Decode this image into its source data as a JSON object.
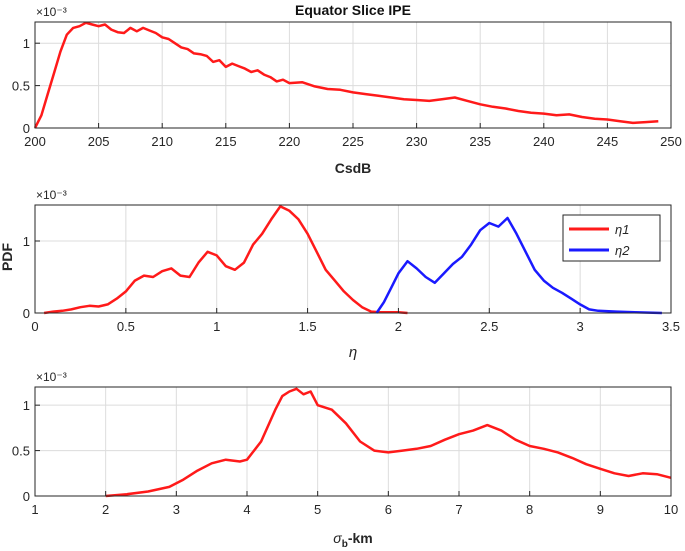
{
  "figure": {
    "title": "Equator Slice IPE",
    "shared_ylabel": "PDF"
  },
  "colors": {
    "red": "#ff1a1a",
    "blue": "#1a1aff",
    "grid": "#dcdcdc",
    "axis": "#262626"
  },
  "chart_data": [
    {
      "type": "line",
      "title": "Equator Slice IPE",
      "xlabel": "CsdB",
      "ylabel": "",
      "y_exponent": "×10⁻³",
      "xlim": [
        200,
        250
      ],
      "ylim": [
        0,
        1.25
      ],
      "x_ticks": [
        200,
        205,
        210,
        215,
        220,
        225,
        230,
        235,
        240,
        245,
        250
      ],
      "y_ticks": [
        0,
        0.5,
        1
      ],
      "y_tick_labels": [
        "0",
        "0.5",
        "1"
      ],
      "grid": true,
      "series": [
        {
          "name": "",
          "color": "#ff1a1a",
          "points": [
            [
              200,
              0.0
            ],
            [
              200.5,
              0.15
            ],
            [
              201,
              0.4
            ],
            [
              201.5,
              0.65
            ],
            [
              202,
              0.9
            ],
            [
              202.5,
              1.1
            ],
            [
              203,
              1.18
            ],
            [
              203.5,
              1.2
            ],
            [
              204,
              1.24
            ],
            [
              204.5,
              1.22
            ],
            [
              205,
              1.2
            ],
            [
              205.5,
              1.22
            ],
            [
              206,
              1.16
            ],
            [
              206.5,
              1.13
            ],
            [
              207,
              1.12
            ],
            [
              207.5,
              1.18
            ],
            [
              208,
              1.14
            ],
            [
              208.5,
              1.18
            ],
            [
              209,
              1.15
            ],
            [
              209.5,
              1.12
            ],
            [
              210,
              1.07
            ],
            [
              210.5,
              1.05
            ],
            [
              211,
              1.0
            ],
            [
              211.5,
              0.95
            ],
            [
              212,
              0.93
            ],
            [
              212.5,
              0.88
            ],
            [
              213,
              0.87
            ],
            [
              213.5,
              0.85
            ],
            [
              214,
              0.78
            ],
            [
              214.5,
              0.8
            ],
            [
              215,
              0.72
            ],
            [
              215.5,
              0.76
            ],
            [
              216,
              0.73
            ],
            [
              216.5,
              0.7
            ],
            [
              217,
              0.66
            ],
            [
              217.5,
              0.68
            ],
            [
              218,
              0.63
            ],
            [
              218.5,
              0.6
            ],
            [
              219,
              0.55
            ],
            [
              219.5,
              0.57
            ],
            [
              220,
              0.53
            ],
            [
              221,
              0.54
            ],
            [
              222,
              0.49
            ],
            [
              223,
              0.46
            ],
            [
              224,
              0.45
            ],
            [
              225,
              0.42
            ],
            [
              226,
              0.4
            ],
            [
              227,
              0.38
            ],
            [
              228,
              0.36
            ],
            [
              229,
              0.34
            ],
            [
              230,
              0.33
            ],
            [
              231,
              0.32
            ],
            [
              232,
              0.34
            ],
            [
              233,
              0.36
            ],
            [
              234,
              0.32
            ],
            [
              235,
              0.28
            ],
            [
              236,
              0.25
            ],
            [
              237,
              0.23
            ],
            [
              238,
              0.2
            ],
            [
              239,
              0.18
            ],
            [
              240,
              0.17
            ],
            [
              241,
              0.15
            ],
            [
              242,
              0.16
            ],
            [
              243,
              0.13
            ],
            [
              244,
              0.11
            ],
            [
              245,
              0.1
            ],
            [
              246,
              0.08
            ],
            [
              247,
              0.06
            ],
            [
              248,
              0.07
            ],
            [
              249,
              0.08
            ]
          ]
        }
      ]
    },
    {
      "type": "line",
      "title": "",
      "xlabel": "η",
      "ylabel": "PDF",
      "y_exponent": "×10⁻³",
      "xlim": [
        0,
        3.5
      ],
      "ylim": [
        0,
        1.5
      ],
      "x_ticks": [
        0,
        0.5,
        1,
        1.5,
        2,
        2.5,
        3,
        3.5
      ],
      "x_tick_labels": [
        "0",
        "0.5",
        "1",
        "1.5",
        "2",
        "2.5",
        "3",
        "3.5"
      ],
      "y_ticks": [
        0,
        1
      ],
      "y_tick_labels": [
        "0",
        "1"
      ],
      "grid": true,
      "legend": {
        "placement": "top-right"
      },
      "series": [
        {
          "name": "η1",
          "color": "#ff1a1a",
          "points": [
            [
              0.05,
              0.0
            ],
            [
              0.1,
              0.02
            ],
            [
              0.15,
              0.03
            ],
            [
              0.2,
              0.05
            ],
            [
              0.25,
              0.08
            ],
            [
              0.3,
              0.1
            ],
            [
              0.35,
              0.09
            ],
            [
              0.4,
              0.12
            ],
            [
              0.45,
              0.2
            ],
            [
              0.5,
              0.3
            ],
            [
              0.55,
              0.45
            ],
            [
              0.6,
              0.52
            ],
            [
              0.65,
              0.5
            ],
            [
              0.7,
              0.58
            ],
            [
              0.75,
              0.62
            ],
            [
              0.8,
              0.52
            ],
            [
              0.85,
              0.5
            ],
            [
              0.9,
              0.7
            ],
            [
              0.95,
              0.85
            ],
            [
              1.0,
              0.8
            ],
            [
              1.05,
              0.65
            ],
            [
              1.1,
              0.6
            ],
            [
              1.15,
              0.7
            ],
            [
              1.2,
              0.95
            ],
            [
              1.25,
              1.1
            ],
            [
              1.3,
              1.3
            ],
            [
              1.35,
              1.48
            ],
            [
              1.4,
              1.42
            ],
            [
              1.45,
              1.3
            ],
            [
              1.5,
              1.1
            ],
            [
              1.55,
              0.85
            ],
            [
              1.6,
              0.6
            ],
            [
              1.65,
              0.45
            ],
            [
              1.7,
              0.3
            ],
            [
              1.75,
              0.18
            ],
            [
              1.8,
              0.08
            ],
            [
              1.85,
              0.02
            ],
            [
              1.9,
              0.01
            ],
            [
              2.0,
              0.01
            ],
            [
              2.05,
              0.0
            ]
          ]
        },
        {
          "name": "η2",
          "color": "#1a1aff",
          "points": [
            [
              1.88,
              0.0
            ],
            [
              1.92,
              0.15
            ],
            [
              1.96,
              0.35
            ],
            [
              2.0,
              0.55
            ],
            [
              2.05,
              0.72
            ],
            [
              2.1,
              0.62
            ],
            [
              2.15,
              0.5
            ],
            [
              2.2,
              0.42
            ],
            [
              2.25,
              0.55
            ],
            [
              2.3,
              0.68
            ],
            [
              2.35,
              0.78
            ],
            [
              2.4,
              0.95
            ],
            [
              2.45,
              1.15
            ],
            [
              2.5,
              1.25
            ],
            [
              2.55,
              1.2
            ],
            [
              2.6,
              1.32
            ],
            [
              2.65,
              1.1
            ],
            [
              2.7,
              0.85
            ],
            [
              2.75,
              0.6
            ],
            [
              2.8,
              0.45
            ],
            [
              2.85,
              0.35
            ],
            [
              2.9,
              0.28
            ],
            [
              2.95,
              0.2
            ],
            [
              3.0,
              0.12
            ],
            [
              3.05,
              0.05
            ],
            [
              3.1,
              0.03
            ],
            [
              3.2,
              0.02
            ],
            [
              3.3,
              0.01
            ],
            [
              3.45,
              0.0
            ]
          ]
        }
      ]
    },
    {
      "type": "line",
      "title": "",
      "xlabel": "σb-km",
      "ylabel": "",
      "y_exponent": "×10⁻³",
      "xlim": [
        1,
        10
      ],
      "ylim": [
        0,
        1.2
      ],
      "x_ticks": [
        1,
        2,
        3,
        4,
        5,
        6,
        7,
        8,
        9,
        10
      ],
      "y_ticks": [
        0,
        0.5,
        1
      ],
      "y_tick_labels": [
        "0",
        "0.5",
        "1"
      ],
      "grid": true,
      "series": [
        {
          "name": "",
          "color": "#ff1a1a",
          "points": [
            [
              2.0,
              0.0
            ],
            [
              2.3,
              0.02
            ],
            [
              2.6,
              0.05
            ],
            [
              2.9,
              0.1
            ],
            [
              3.1,
              0.18
            ],
            [
              3.3,
              0.28
            ],
            [
              3.5,
              0.36
            ],
            [
              3.7,
              0.4
            ],
            [
              3.9,
              0.38
            ],
            [
              4.0,
              0.4
            ],
            [
              4.2,
              0.6
            ],
            [
              4.4,
              0.95
            ],
            [
              4.5,
              1.1
            ],
            [
              4.6,
              1.15
            ],
            [
              4.7,
              1.18
            ],
            [
              4.8,
              1.12
            ],
            [
              4.9,
              1.15
            ],
            [
              5.0,
              1.0
            ],
            [
              5.2,
              0.95
            ],
            [
              5.4,
              0.8
            ],
            [
              5.6,
              0.6
            ],
            [
              5.8,
              0.5
            ],
            [
              6.0,
              0.48
            ],
            [
              6.2,
              0.5
            ],
            [
              6.4,
              0.52
            ],
            [
              6.6,
              0.55
            ],
            [
              6.8,
              0.62
            ],
            [
              7.0,
              0.68
            ],
            [
              7.2,
              0.72
            ],
            [
              7.4,
              0.78
            ],
            [
              7.6,
              0.72
            ],
            [
              7.8,
              0.62
            ],
            [
              8.0,
              0.55
            ],
            [
              8.2,
              0.52
            ],
            [
              8.4,
              0.48
            ],
            [
              8.6,
              0.42
            ],
            [
              8.8,
              0.35
            ],
            [
              9.0,
              0.3
            ],
            [
              9.2,
              0.25
            ],
            [
              9.4,
              0.22
            ],
            [
              9.6,
              0.25
            ],
            [
              9.8,
              0.24
            ],
            [
              10.0,
              0.2
            ]
          ]
        }
      ]
    }
  ]
}
